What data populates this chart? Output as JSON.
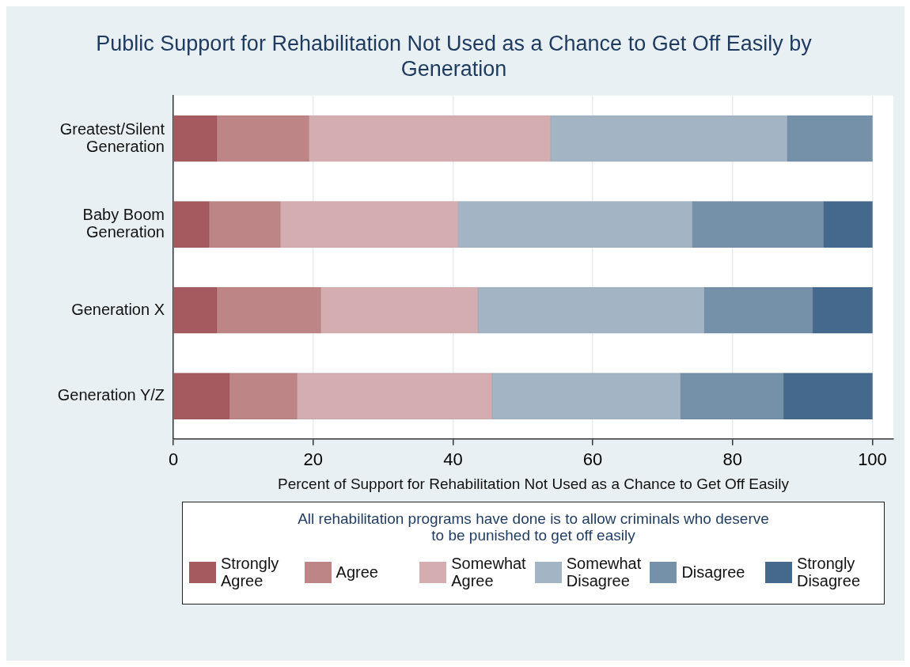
{
  "chart_data": {
    "type": "bar",
    "orientation": "horizontal",
    "stacked": true,
    "title": "Public Support for Rehabilitation Not Used as a Chance to Get Off Easily by Generation",
    "xlabel": "Percent of Support for Rehabilitation Not Used as a Chance to Get Off Easily",
    "legend_title": "All rehabilitation programs have done is to allow criminals who deserve to be punished to get off easily",
    "categories": [
      "Greatest/Silent Generation",
      "Baby Boom Generation",
      "Generation X",
      "Generation Y/Z"
    ],
    "series": [
      {
        "name": "Strongly Agree",
        "color": "#a45a5e",
        "values": [
          6.2,
          5.1,
          6.2,
          8.0
        ]
      },
      {
        "name": "Agree",
        "color": "#bd8585",
        "values": [
          13.2,
          10.2,
          14.9,
          9.7
        ]
      },
      {
        "name": "Somewhat Agree",
        "color": "#d4adb1",
        "values": [
          34.6,
          25.4,
          22.5,
          27.9
        ]
      },
      {
        "name": "Somewhat Disagree",
        "color": "#a3b4c5",
        "values": [
          33.8,
          33.5,
          32.3,
          26.9
        ]
      },
      {
        "name": "Disagree",
        "color": "#7590a9",
        "values": [
          12.2,
          18.8,
          15.5,
          14.8
        ]
      },
      {
        "name": "Strongly Disagree",
        "color": "#45698c",
        "values": [
          0,
          7.0,
          8.6,
          12.7
        ]
      }
    ],
    "xlim": [
      0,
      103
    ],
    "xticks": [
      0,
      20,
      40,
      60,
      80,
      100
    ],
    "grid": "x",
    "legend": "bottom"
  }
}
